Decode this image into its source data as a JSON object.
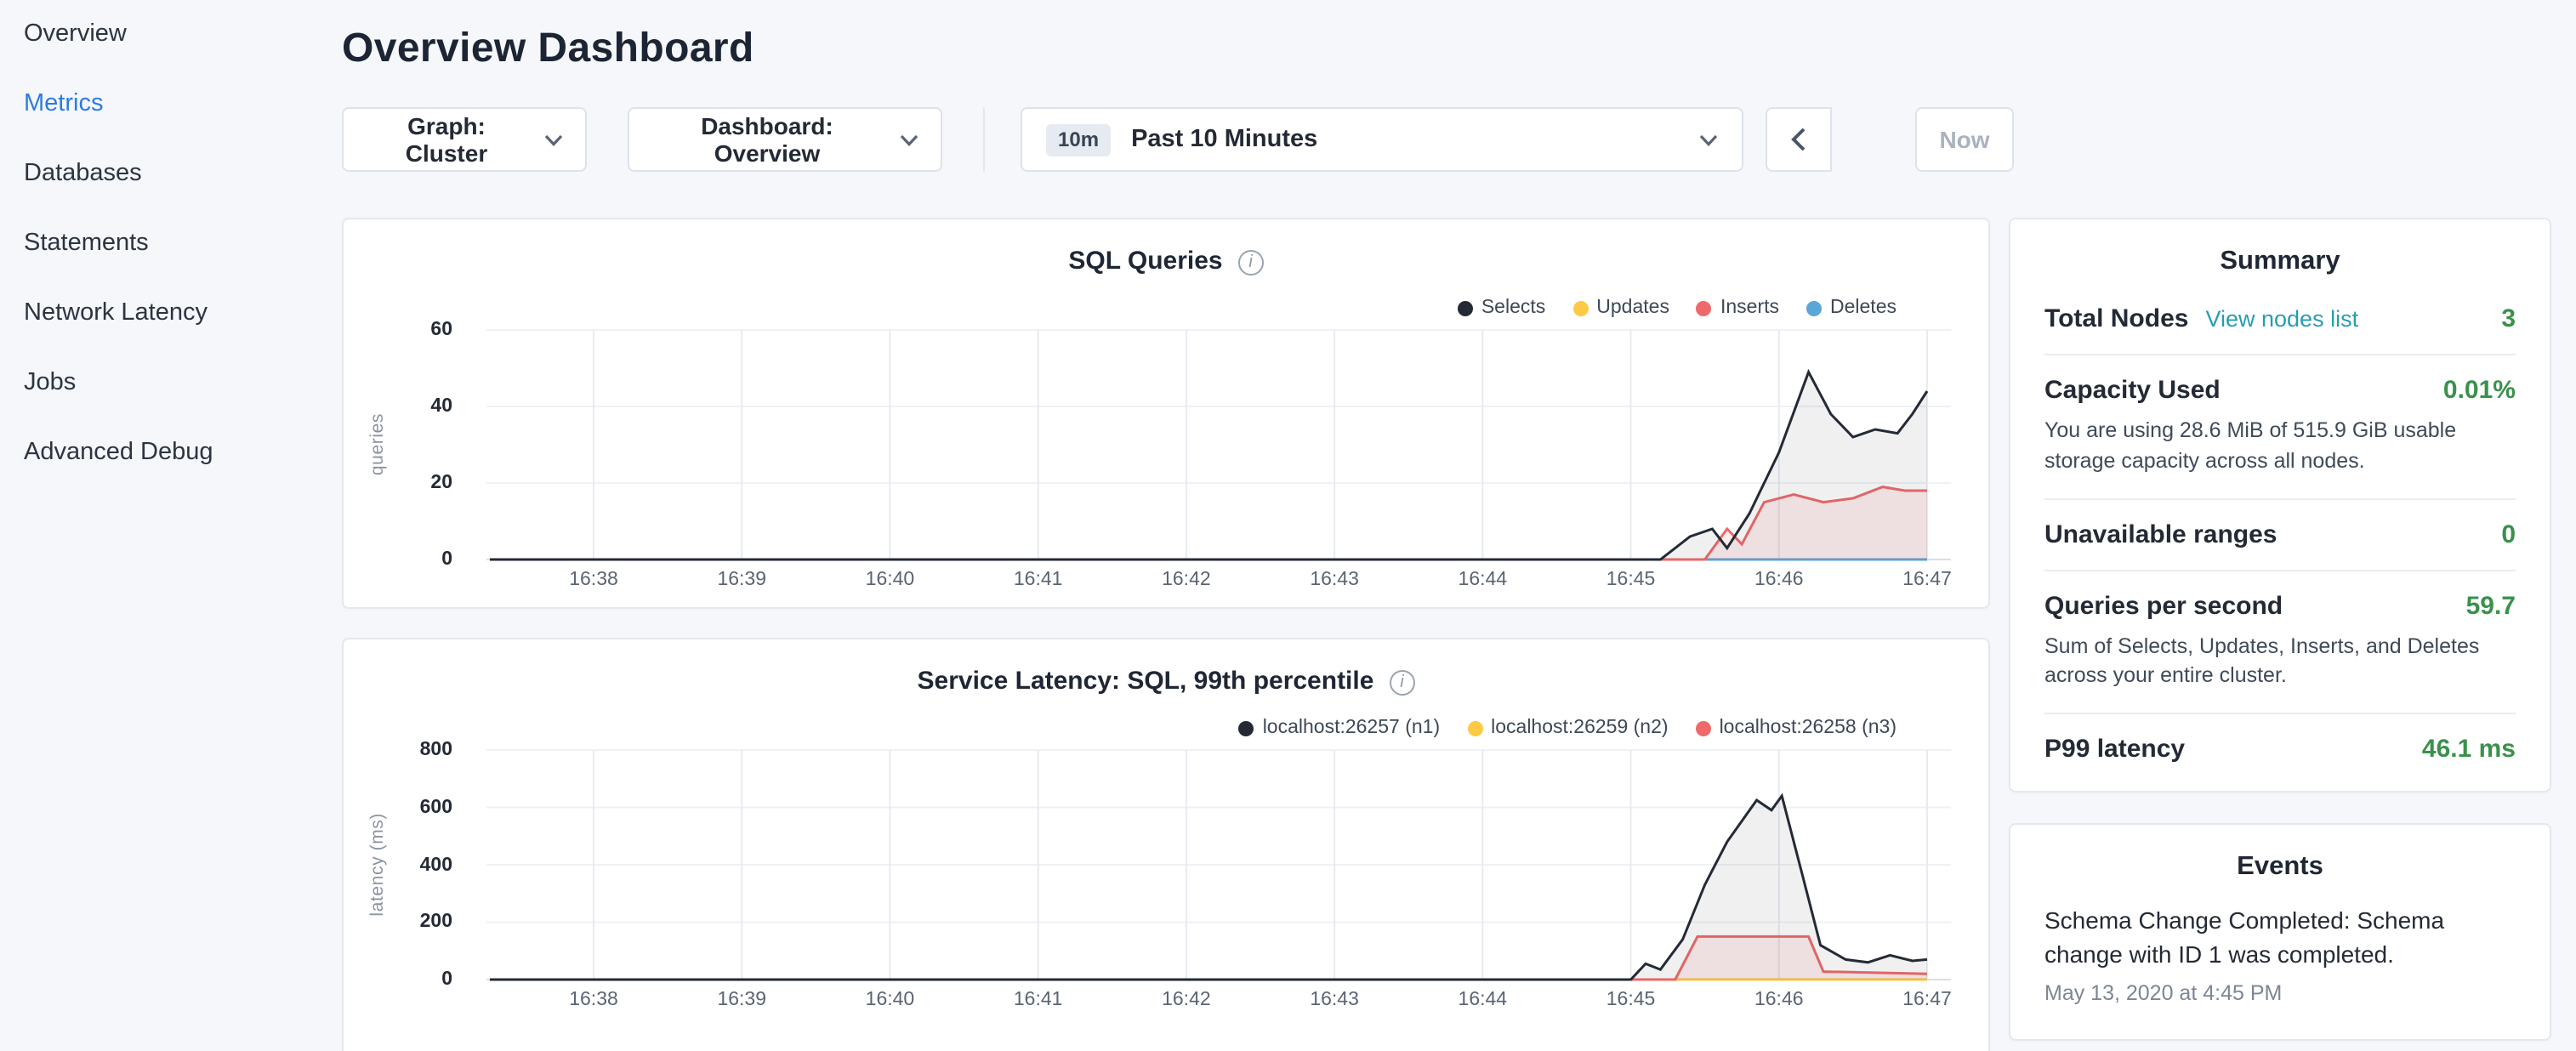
{
  "sidebar": {
    "active_item": "Metrics",
    "items": [
      {
        "label": "Overview"
      },
      {
        "label": "Metrics"
      },
      {
        "label": "Databases"
      },
      {
        "label": "Statements"
      },
      {
        "label": "Network Latency"
      },
      {
        "label": "Jobs"
      },
      {
        "label": "Advanced Debug"
      }
    ]
  },
  "header": {
    "title": "Overview Dashboard"
  },
  "toolbar": {
    "graph_dropdown": "Graph: Cluster",
    "dashboard_dropdown": "Dashboard: Overview",
    "time_window": {
      "badge": "10m",
      "label": "Past 10 Minutes"
    },
    "now_button": "Now"
  },
  "summary": {
    "title": "Summary",
    "value_color": "#3a914c",
    "link_color": "#269db4",
    "rows": [
      {
        "label": "Total Nodes",
        "link": "View nodes list",
        "value": "3"
      },
      {
        "label": "Capacity Used",
        "value": "0.01%",
        "desc": "You are using 28.6 MiB of 515.9 GiB usable storage capacity across all nodes."
      },
      {
        "label": "Unavailable ranges",
        "value": "0"
      },
      {
        "label": "Queries per second",
        "value": "59.7",
        "desc": "Sum of Selects, Updates, Inserts, and Deletes across your entire cluster."
      },
      {
        "label": "P99 latency",
        "value": "46.1 ms"
      }
    ]
  },
  "events": {
    "title": "Events",
    "items": [
      {
        "message": "Schema Change Completed: Schema change with ID 1 was completed.",
        "timestamp": "May 13, 2020 at 4:45 PM"
      }
    ]
  },
  "chart_data": [
    {
      "type": "line",
      "title": "SQL Queries",
      "ylabel": "queries",
      "xlabel": "",
      "ylim": [
        0,
        60
      ],
      "yticks": [
        0,
        20,
        40,
        60
      ],
      "grid": true,
      "legend_position": "top-right",
      "x": [
        "16:38",
        "16:39",
        "16:40",
        "16:41",
        "16:42",
        "16:43",
        "16:44",
        "16:45",
        "16:46",
        "16:47"
      ],
      "legend": [
        {
          "name": "Selects",
          "color": "#242a35"
        },
        {
          "name": "Updates",
          "color": "#fdca45"
        },
        {
          "name": "Inserts",
          "color": "#ee6a6a"
        },
        {
          "name": "Deletes",
          "color": "#5aa6d8"
        }
      ],
      "series": [
        {
          "name": "Updates",
          "color": "#fdca45",
          "points": [
            [
              -0.7,
              0
            ],
            [
              9,
              0
            ]
          ]
        },
        {
          "name": "Deletes",
          "color": "#5aa6d8",
          "points": [
            [
              -0.7,
              0
            ],
            [
              9,
              0
            ]
          ]
        },
        {
          "name": "Inserts",
          "color": "#ee6a6a",
          "fill": "rgba(238,106,106,0.12)",
          "points": [
            [
              -0.7,
              0
            ],
            [
              7.5,
              0
            ],
            [
              7.65,
              8
            ],
            [
              7.75,
              4
            ],
            [
              7.9,
              15
            ],
            [
              8.1,
              17
            ],
            [
              8.3,
              15
            ],
            [
              8.5,
              16
            ],
            [
              8.7,
              19
            ],
            [
              8.85,
              18
            ],
            [
              9,
              18
            ]
          ]
        },
        {
          "name": "Selects",
          "color": "#242a35",
          "fill": "rgba(36,42,53,0.07)",
          "points": [
            [
              -0.7,
              0
            ],
            [
              7.2,
              0
            ],
            [
              7.4,
              6
            ],
            [
              7.55,
              8
            ],
            [
              7.65,
              3
            ],
            [
              7.8,
              12
            ],
            [
              8.0,
              28
            ],
            [
              8.2,
              49
            ],
            [
              8.35,
              38
            ],
            [
              8.5,
              32
            ],
            [
              8.65,
              34
            ],
            [
              8.8,
              33
            ],
            [
              8.9,
              38
            ],
            [
              9,
              44
            ]
          ]
        }
      ]
    },
    {
      "type": "line",
      "title": "Service Latency: SQL, 99th percentile",
      "ylabel": "latency (ms)",
      "xlabel": "",
      "ylim": [
        0,
        800
      ],
      "yticks": [
        0,
        200,
        400,
        600,
        800
      ],
      "grid": true,
      "legend_position": "top-right",
      "x": [
        "16:38",
        "16:39",
        "16:40",
        "16:41",
        "16:42",
        "16:43",
        "16:44",
        "16:45",
        "16:46",
        "16:47"
      ],
      "legend": [
        {
          "name": "localhost:26257 (n1)",
          "color": "#242a35"
        },
        {
          "name": "localhost:26259 (n2)",
          "color": "#fdca45"
        },
        {
          "name": "localhost:26258 (n3)",
          "color": "#ee6a6a"
        }
      ],
      "series": [
        {
          "name": "localhost:26259 (n2)",
          "color": "#fdca45",
          "points": [
            [
              -0.7,
              0
            ],
            [
              9,
              0
            ]
          ]
        },
        {
          "name": "localhost:26258 (n3)",
          "color": "#ee6a6a",
          "fill": "rgba(238,106,106,0.12)",
          "points": [
            [
              -0.7,
              0
            ],
            [
              7.3,
              0
            ],
            [
              7.45,
              150
            ],
            [
              8.2,
              150
            ],
            [
              8.3,
              28
            ],
            [
              9,
              20
            ]
          ]
        },
        {
          "name": "localhost:26257 (n1)",
          "color": "#242a35",
          "fill": "rgba(36,42,53,0.07)",
          "points": [
            [
              -0.7,
              0
            ],
            [
              7.0,
              0
            ],
            [
              7.1,
              55
            ],
            [
              7.2,
              35
            ],
            [
              7.35,
              140
            ],
            [
              7.5,
              330
            ],
            [
              7.65,
              480
            ],
            [
              7.85,
              625
            ],
            [
              7.95,
              590
            ],
            [
              8.02,
              640
            ],
            [
              8.15,
              380
            ],
            [
              8.28,
              120
            ],
            [
              8.45,
              70
            ],
            [
              8.6,
              60
            ],
            [
              8.75,
              85
            ],
            [
              8.9,
              65
            ],
            [
              9,
              70
            ]
          ]
        }
      ]
    }
  ]
}
